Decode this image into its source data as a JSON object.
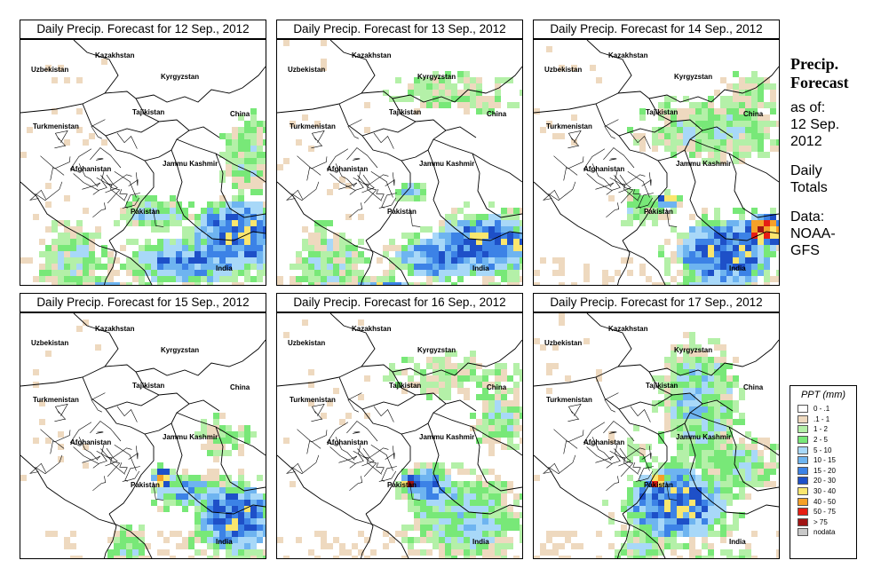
{
  "panels": [
    {
      "title": "Daily Precip. Forecast for  12 Sep., 2012"
    },
    {
      "title": "Daily Precip. Forecast for  13 Sep., 2012"
    },
    {
      "title": "Daily Precip. Forecast for  14 Sep., 2012"
    },
    {
      "title": "Daily Precip. Forecast for  15 Sep., 2012"
    },
    {
      "title": "Daily Precip. Forecast for  16 Sep., 2012"
    },
    {
      "title": "Daily Precip. Forecast for  17 Sep., 2012"
    }
  ],
  "map_labels": {
    "kazakhstan": "Kazakhstan",
    "uzbekistan": "Uzbekistan",
    "kyrgyzstan": "Kyrgyzstan",
    "tajikistan": "Tajikistan",
    "turkmenistan": "Turkmenistan",
    "china": "China",
    "afghanistan": "Afghanistan",
    "jammu_kashmir": "Jammu Kashmir",
    "pakistan": "Pakistan",
    "india": "India"
  },
  "sidebar": {
    "heading_line1": "Precip.",
    "heading_line2": "Forecast",
    "asof_line1": "as of:",
    "asof_line2": "12 Sep.",
    "asof_line3": "2012",
    "totals_line1": "Daily",
    "totals_line2": "Totals",
    "data_line1": "Data:",
    "data_line2": "NOAA-",
    "data_line3": "GFS"
  },
  "legend": {
    "title": "PPT (mm)",
    "items": [
      {
        "label": "0 - .1",
        "color": "#ffffff"
      },
      {
        "label": ".1 - 1",
        "color": "#eed9bf"
      },
      {
        "label": "1 - 2",
        "color": "#b4f0a8"
      },
      {
        "label": "2 - 5",
        "color": "#78e878"
      },
      {
        "label": "5 - 10",
        "color": "#a8d8f8"
      },
      {
        "label": "10 - 15",
        "color": "#6eb4f0"
      },
      {
        "label": "15 - 20",
        "color": "#3c82e6"
      },
      {
        "label": "20 - 30",
        "color": "#1e50c8"
      },
      {
        "label": "30 - 40",
        "color": "#fae66e"
      },
      {
        "label": "40 - 50",
        "color": "#f5a028"
      },
      {
        "label": "50 - 75",
        "color": "#e61e14"
      },
      {
        "label": "> 75",
        "color": "#a01414"
      },
      {
        "label": "nodata",
        "color": "#c8c8c8"
      }
    ]
  }
}
